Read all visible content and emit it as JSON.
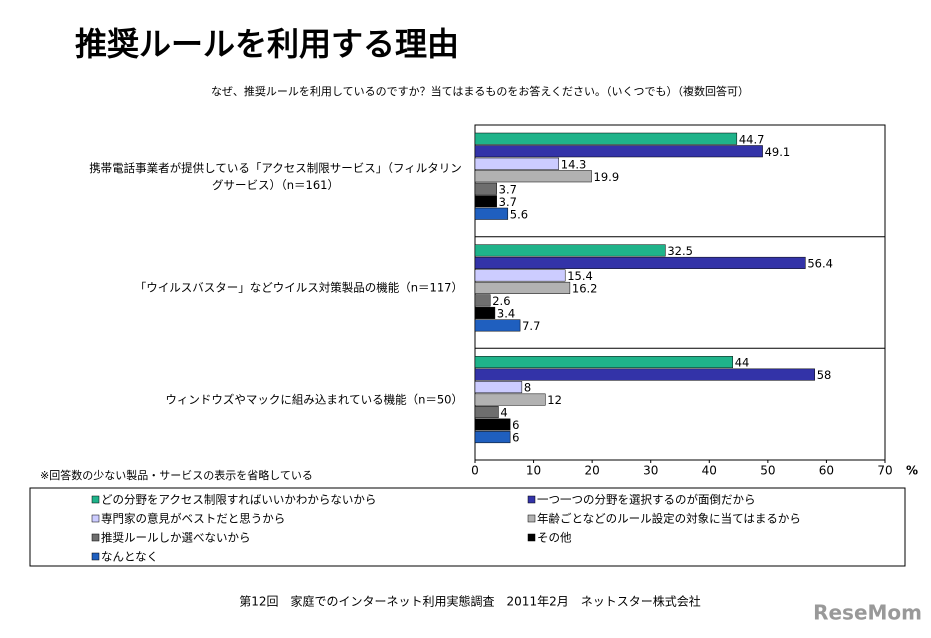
{
  "chart_data": {
    "type": "hbar",
    "title": "推奨ルールを利用する理由",
    "subtitle": "なぜ、推奨ルールを利用しているのですか？当てはまるものをお答えください。（いくつでも）（複数回答可）",
    "note": "※回答数の少ない製品・サービスの表示を省略している",
    "footer": "第12回　家庭でのインターネット利用実態調査　2011年2月　ネットスター株式会社",
    "watermark": "ReseMom",
    "x_unit": "%",
    "categories": [
      "携帯電話事業者が提供している「アクセス制限サービス」（フィルタリングサービス）（n＝161）",
      "「ウイルスバスター」などウイルス対策製品の機能（n＝117）",
      "ウィンドウズやマックに組み込まれている機能（n＝50）"
    ],
    "series": [
      {
        "name": "どの分野をアクセス制限すればいいかわからないから",
        "color": "#1fb38a",
        "values": [
          44.7,
          32.5,
          44
        ]
      },
      {
        "name": "一つ一つの分野を選択するのが面倒だから",
        "color": "#3333a8",
        "values": [
          49.1,
          56.4,
          58
        ]
      },
      {
        "name": "専門家の意見がベストだと思うから",
        "color": "#ccccff",
        "values": [
          14.3,
          15.4,
          8
        ]
      },
      {
        "name": "年齢ごとなどのルール設定の対象に当てはまるから",
        "color": "#b2b2b2",
        "values": [
          19.9,
          16.2,
          12
        ]
      },
      {
        "name": "推奨ルールしか選べないから",
        "color": "#6e6e6e",
        "values": [
          3.7,
          2.6,
          4
        ]
      },
      {
        "name": "その他",
        "color": "#000000",
        "values": [
          3.7,
          3.4,
          6
        ]
      },
      {
        "name": "なんとなく",
        "color": "#1f5fbf",
        "values": [
          5.6,
          7.7,
          6
        ]
      }
    ],
    "xlim": [
      0,
      70
    ],
    "xticks": [
      0,
      10,
      20,
      30,
      40,
      50,
      60,
      70
    ]
  }
}
